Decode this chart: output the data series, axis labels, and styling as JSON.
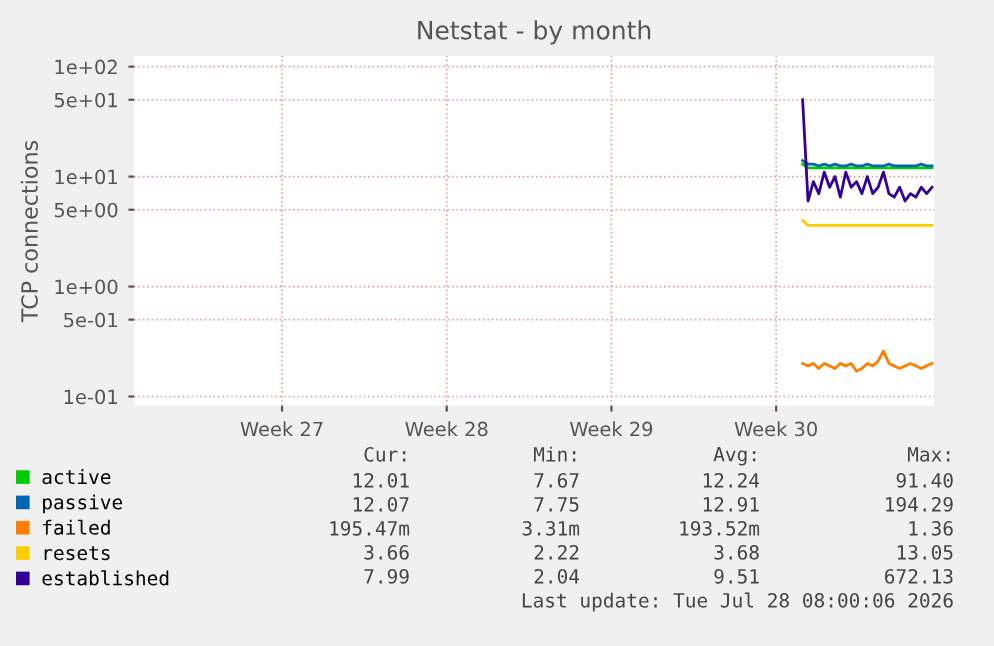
{
  "chart_data": {
    "type": "line",
    "title": "Netstat - by month",
    "ylabel": "TCP connections",
    "log": true,
    "grid": true,
    "legend": "bottom",
    "line_style": "solid",
    "xlim": [
      "2026-06-24T08:00",
      "2026-07-28T08:00"
    ],
    "xticks": [
      {
        "value": "2026-06-30T15:00",
        "label": "Week 27"
      },
      {
        "value": "2026-07-07T15:00",
        "label": "Week 28"
      },
      {
        "value": "2026-07-14T15:00",
        "label": "Week 29"
      },
      {
        "value": "2026-07-21T15:00",
        "label": "Week 30"
      }
    ],
    "ylim": [
      0.082,
      125
    ],
    "yticks": [
      {
        "value": 0.1,
        "label": "1e-01"
      },
      {
        "value": 0.5,
        "label": "5e-01"
      },
      {
        "value": 1,
        "label": "1e+00"
      },
      {
        "value": 5,
        "label": "5e+00"
      },
      {
        "value": 10,
        "label": "1e+01"
      },
      {
        "value": 50,
        "label": "5e+01"
      },
      {
        "value": 100,
        "label": "1e+02"
      }
    ],
    "x": [
      "2026-07-22T18:00",
      "2026-07-22T23:30",
      "2026-07-23T05:00",
      "2026-07-23T10:30",
      "2026-07-23T16:00",
      "2026-07-23T21:30",
      "2026-07-24T03:00",
      "2026-07-24T08:30",
      "2026-07-24T14:00",
      "2026-07-24T19:30",
      "2026-07-25T01:00",
      "2026-07-25T06:30",
      "2026-07-25T12:00",
      "2026-07-25T17:30",
      "2026-07-25T23:00",
      "2026-07-26T04:30",
      "2026-07-26T10:00",
      "2026-07-26T15:30",
      "2026-07-26T21:00",
      "2026-07-27T02:30",
      "2026-07-27T08:00",
      "2026-07-27T13:30",
      "2026-07-27T19:00",
      "2026-07-28T00:30",
      "2026-07-28T06:00"
    ],
    "series": [
      {
        "name": "active",
        "color": "#00cc00",
        "values": [
          13,
          12,
          12,
          12,
          12,
          12,
          12,
          12,
          12,
          12,
          12,
          12,
          12,
          12,
          12,
          12,
          12,
          12,
          12,
          12,
          12,
          12,
          12,
          12,
          12
        ]
      },
      {
        "name": "passive",
        "color": "#0066b3",
        "values": [
          14,
          13,
          13,
          12.5,
          13,
          12.5,
          13,
          12.5,
          12.5,
          13,
          12.5,
          12.5,
          13,
          12.5,
          12.5,
          12.5,
          13,
          12.5,
          12.5,
          12.5,
          12.5,
          12.5,
          13,
          12.5,
          12.5
        ]
      },
      {
        "name": "failed",
        "color": "#ff8000",
        "values": [
          0.2,
          0.19,
          0.2,
          0.18,
          0.2,
          0.19,
          0.18,
          0.2,
          0.19,
          0.2,
          0.17,
          0.18,
          0.2,
          0.19,
          0.21,
          0.26,
          0.2,
          0.19,
          0.18,
          0.19,
          0.2,
          0.19,
          0.18,
          0.19,
          0.2
        ]
      },
      {
        "name": "resets",
        "color": "#ffcc00",
        "values": [
          4.0,
          3.6,
          3.6,
          3.6,
          3.6,
          3.6,
          3.6,
          3.6,
          3.6,
          3.6,
          3.6,
          3.6,
          3.6,
          3.6,
          3.6,
          3.6,
          3.6,
          3.6,
          3.6,
          3.6,
          3.6,
          3.6,
          3.6,
          3.6,
          3.6
        ]
      },
      {
        "name": "established",
        "color": "#330099",
        "values": [
          50,
          6,
          9,
          7,
          11,
          8,
          10,
          6.5,
          11,
          8,
          9,
          7,
          10,
          7,
          8,
          11,
          7,
          6.5,
          8,
          6,
          7,
          6.5,
          8,
          7,
          8
        ]
      }
    ],
    "annotations": [
      "Cur:",
      "Min:",
      "Avg:",
      "Max:",
      "12.01",
      "7.67",
      "12.24",
      "91.40",
      "12.07",
      "7.75",
      "12.91",
      "194.29",
      "195.47m",
      "3.31m",
      "193.52m",
      "1.36",
      "3.66",
      "2.22",
      "3.68",
      "13.05",
      "7.99",
      "2.04",
      "9.51",
      "672.13",
      "Last update: Tue Jul 28 08:00:06 2026"
    ]
  }
}
